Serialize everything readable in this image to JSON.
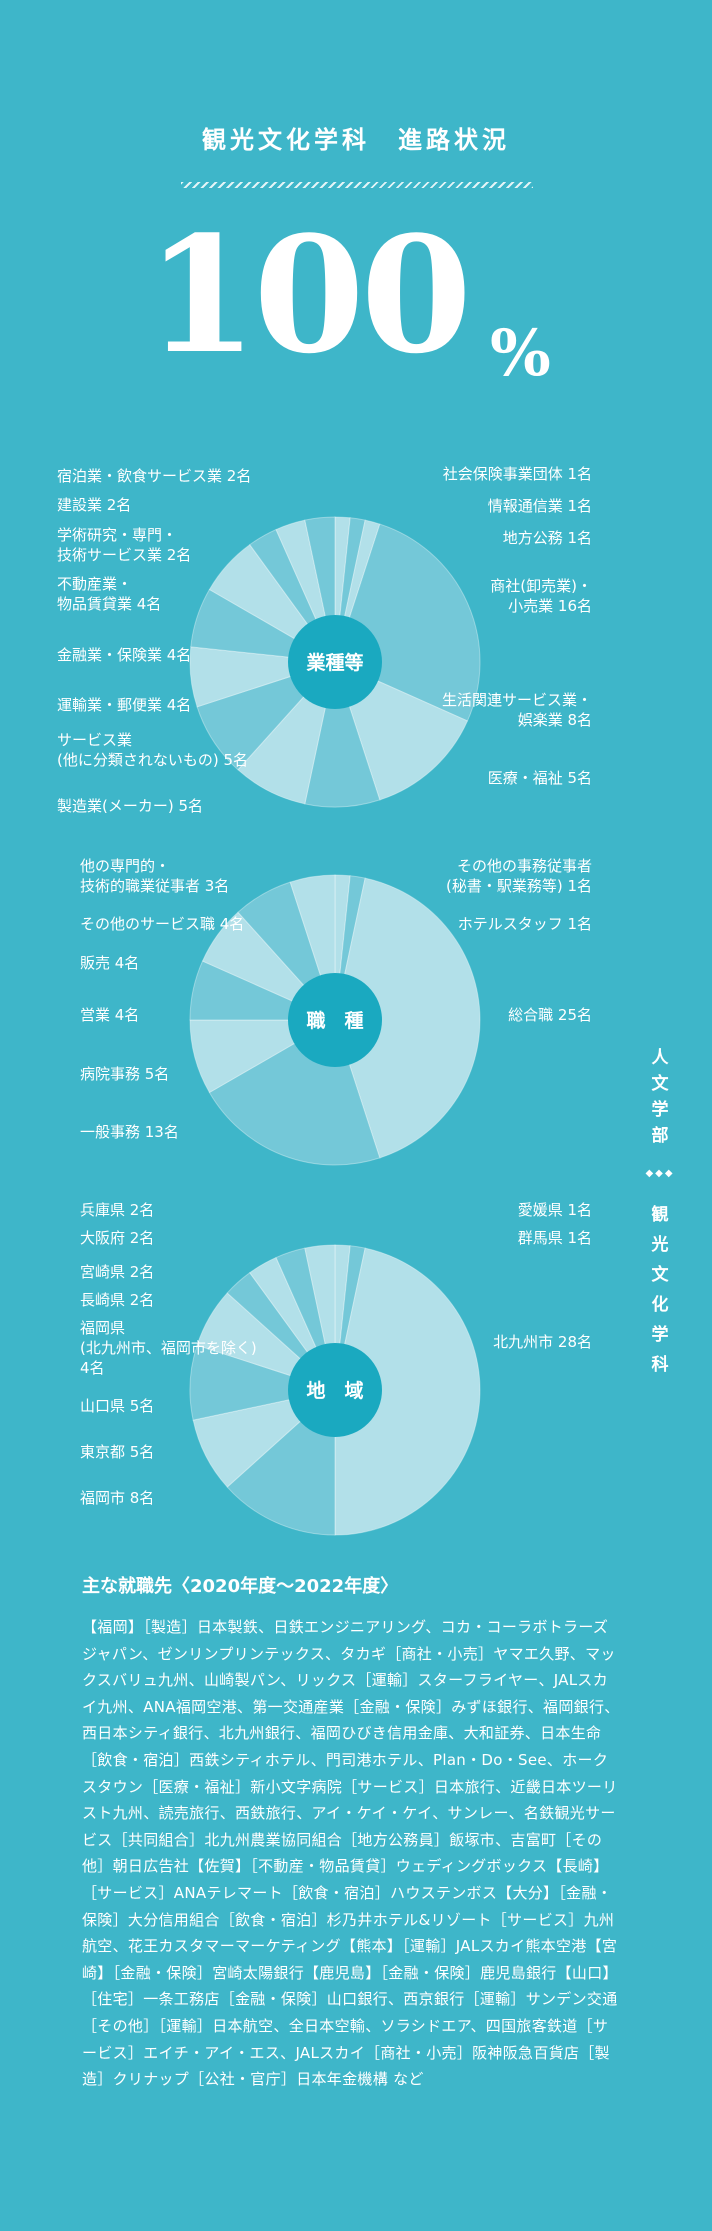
{
  "header": {
    "title": "観光文化学科　進路状況",
    "big_number": "100",
    "big_unit": "%"
  },
  "sidebar": {
    "top": "人文学部",
    "dots": "◆◆◆",
    "bottom": "観光文化学科"
  },
  "colors": {
    "background": "#3eb6c9",
    "center": "#1aa9c0",
    "slice_light": "#bfe4ec",
    "slice_dark": "#7ecbda"
  },
  "chart_data": [
    {
      "type": "pie",
      "center_label": "業種等",
      "slices": [
        {
          "label": "社会保険事業団体 1名",
          "value": 1
        },
        {
          "label": "情報通信業 1名",
          "value": 1
        },
        {
          "label": "地方公務 1名",
          "value": 1
        },
        {
          "label": "商社(卸売業)・\n小売業 16名",
          "value": 16
        },
        {
          "label": "生活関連サービス業・\n娯楽業 8名",
          "value": 8
        },
        {
          "label": "医療・福祉 5名",
          "value": 5
        },
        {
          "label": "製造業(メーカー) 5名",
          "value": 5
        },
        {
          "label": "サービス業\n(他に分類されないもの) 5名",
          "value": 5
        },
        {
          "label": "運輸業・郵便業 4名",
          "value": 4
        },
        {
          "label": "金融業・保険業 4名",
          "value": 4
        },
        {
          "label": "不動産業・\n物品賃貸業 4名",
          "value": 4
        },
        {
          "label": "学術研究・専門・\n技術サービス業 2名",
          "value": 2
        },
        {
          "label": "建設業 2名",
          "value": 2
        },
        {
          "label": "宿泊業・飲食サービス業 2名",
          "value": 2
        }
      ]
    },
    {
      "type": "pie",
      "center_label": "職　種",
      "slices": [
        {
          "label": "その他の事務従事者\n(秘書・駅業務等) 1名",
          "value": 1
        },
        {
          "label": "ホテルスタッフ 1名",
          "value": 1
        },
        {
          "label": "総合職 25名",
          "value": 25
        },
        {
          "label": "一般事務 13名",
          "value": 13
        },
        {
          "label": "病院事務 5名",
          "value": 5
        },
        {
          "label": "営業 4名",
          "value": 4
        },
        {
          "label": "販売 4名",
          "value": 4
        },
        {
          "label": "その他のサービス職 4名",
          "value": 4
        },
        {
          "label": "他の専門的・\n技術的職業従事者 3名",
          "value": 3
        }
      ]
    },
    {
      "type": "pie",
      "center_label": "地　域",
      "slices": [
        {
          "label": "愛媛県 1名",
          "value": 1
        },
        {
          "label": "群馬県 1名",
          "value": 1
        },
        {
          "label": "北九州市 28名",
          "value": 28
        },
        {
          "label": "福岡市 8名",
          "value": 8
        },
        {
          "label": "東京都 5名",
          "value": 5
        },
        {
          "label": "山口県 5名",
          "value": 5
        },
        {
          "label": "福岡県\n(北九州市、福岡市を除く)\n4名",
          "value": 4
        },
        {
          "label": "長崎県 2名",
          "value": 2
        },
        {
          "label": "宮崎県 2名",
          "value": 2
        },
        {
          "label": "大阪府 2名",
          "value": 2
        },
        {
          "label": "兵庫県 2名",
          "value": 2
        }
      ]
    }
  ],
  "employers": {
    "title": "主な就職先〈2020年度～2022年度〉",
    "body": "【福岡】［製造］日本製鉄、日鉄エンジニアリング、コカ・コーラボトラーズジャパン、ゼンリンプリンテックス、タカギ［商社・小売］ヤマエ久野、マックスバリュ九州、山崎製パン、リックス［運輸］スターフライヤー、JALスカイ九州、ANA福岡空港、第一交通産業［金融・保険］みずほ銀行、福岡銀行、西日本シティ銀行、北九州銀行、福岡ひびき信用金庫、大和証券、日本生命［飲食・宿泊］西鉄シティホテル、門司港ホテル、Plan・Do・See、ホークスタウン［医療・福祉］新小文字病院［サービス］日本旅行、近畿日本ツーリスト九州、読売旅行、西鉄旅行、アイ・ケイ・ケイ、サンレー、名鉄観光サービス［共同組合］北九州農業協同組合［地方公務員］飯塚市、吉富町［その他］朝日広告社【佐賀】［不動産・物品賃貸］ウェディングボックス【長崎】［サービス］ANAテレマート［飲食・宿泊］ハウステンボス【大分】［金融・保険］大分信用組合［飲食・宿泊］杉乃井ホテル&リゾート［サービス］九州航空、花王カスタマーマーケティング【熊本】［運輸］JALスカイ熊本空港【宮崎】［金融・保険］宮崎太陽銀行【鹿児島】［金融・保険］鹿児島銀行【山口】［住宅］一条工務店［金融・保険］山口銀行、西京銀行［運輸］サンデン交通［その他］［運輸］日本航空、全日本空輸、ソラシドエア、四国旅客鉄道［サービス］エイチ・アイ・エス、JALスカイ［商社・小売］阪神阪急百貨店［製造］クリナップ［公社・官庁］日本年金機構 など"
  }
}
